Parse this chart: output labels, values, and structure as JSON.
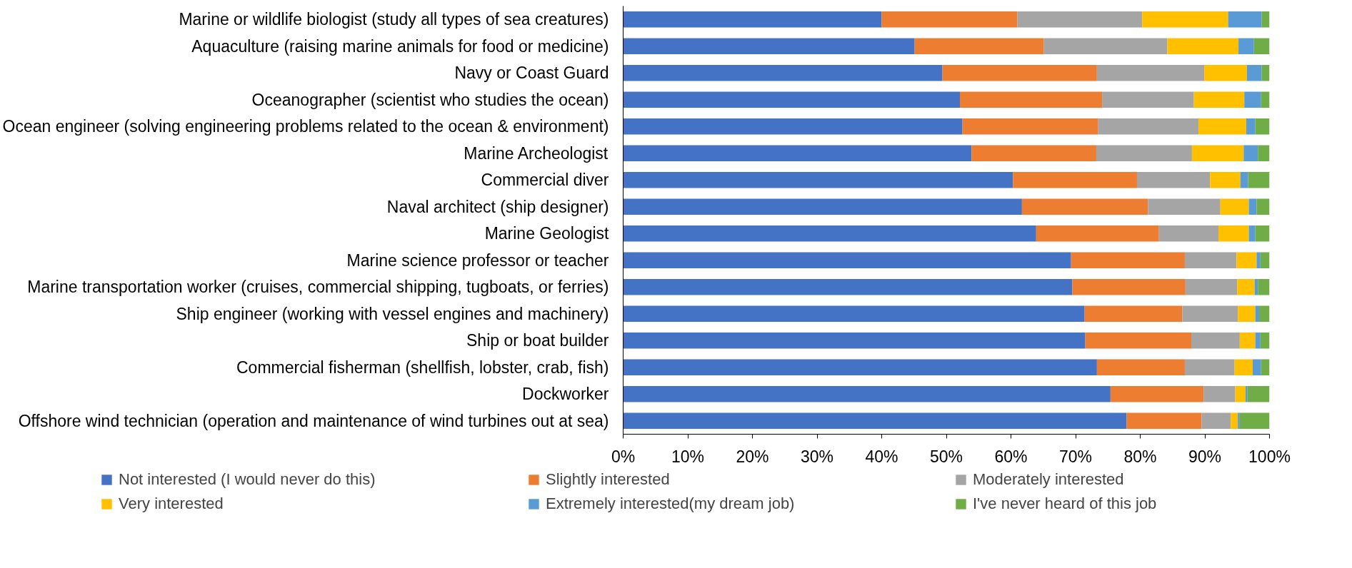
{
  "chart_data": {
    "type": "bar",
    "orientation": "horizontal",
    "stacked": true,
    "categories": [
      "Marine or wildlife biologist (study all types of sea creatures)",
      "Aquaculture (raising marine animals for food or medicine)",
      "Navy or Coast Guard",
      "Oceanographer (scientist who studies the ocean)",
      "Ocean engineer (solving engineering problems related to the ocean & environment)",
      "Marine Archeologist",
      "Commercial diver",
      "Naval architect (ship designer)",
      "Marine Geologist",
      "Marine science professor or teacher",
      "Marine transportation worker (cruises, commercial shipping, tugboats, or ferries)",
      "Ship engineer (working with vessel engines and machinery)",
      "Ship or boat builder",
      "Commercial fisherman (shellfish, lobster, crab, fish)",
      "Dockworker",
      "Offshore wind technician (operation and maintenance of wind turbines out at sea)"
    ],
    "series": [
      {
        "name": "Not interested (I would never do this)",
        "color": "#4472c4",
        "values": [
          40.0,
          45.1,
          49.4,
          52.1,
          52.5,
          53.9,
          60.3,
          61.7,
          63.9,
          69.3,
          69.5,
          71.4,
          71.5,
          73.3,
          75.4,
          77.9
        ]
      },
      {
        "name": "Slightly interested",
        "color": "#ed7d31",
        "values": [
          21.0,
          20.0,
          23.9,
          22.0,
          21.0,
          19.3,
          19.2,
          19.5,
          19.0,
          17.6,
          17.5,
          15.1,
          16.4,
          13.6,
          14.4,
          11.6
        ]
      },
      {
        "name": "Moderately interested",
        "color": "#a5a5a5",
        "values": [
          19.3,
          19.1,
          16.6,
          14.2,
          15.5,
          14.8,
          11.3,
          11.2,
          9.2,
          8.0,
          8.0,
          8.6,
          7.5,
          7.7,
          4.9,
          4.5
        ]
      },
      {
        "name": "Very interested",
        "color": "#ffc000",
        "values": [
          13.3,
          11.0,
          6.6,
          7.8,
          7.4,
          8.0,
          4.7,
          4.4,
          4.7,
          3.1,
          2.7,
          2.7,
          2.4,
          2.8,
          1.6,
          1.1
        ]
      },
      {
        "name": "Extremely interested(my dream job)",
        "color": "#5b9bd5",
        "values": [
          5.2,
          2.4,
          2.3,
          2.6,
          1.4,
          2.2,
          1.2,
          1.2,
          1.0,
          0.6,
          0.5,
          0.6,
          0.8,
          1.3,
          0.3,
          0.3
        ]
      },
      {
        "name": "I've never heard of this job",
        "color": "#70ad47",
        "values": [
          1.2,
          2.4,
          1.2,
          1.3,
          2.2,
          1.8,
          3.3,
          2.0,
          2.2,
          1.4,
          1.8,
          1.6,
          1.4,
          1.3,
          3.4,
          4.6
        ]
      }
    ],
    "xlim": [
      0,
      100
    ],
    "xticks": [
      {
        "value": 0,
        "label": "0%"
      },
      {
        "value": 10,
        "label": "10%"
      },
      {
        "value": 20,
        "label": "20%"
      },
      {
        "value": 30,
        "label": "30%"
      },
      {
        "value": 40,
        "label": "40%"
      },
      {
        "value": 50,
        "label": "50%"
      },
      {
        "value": 60,
        "label": "60%"
      },
      {
        "value": 70,
        "label": "70%"
      },
      {
        "value": 80,
        "label": "80%"
      },
      {
        "value": 90,
        "label": "90%"
      },
      {
        "value": 100,
        "label": "100%"
      }
    ],
    "grid": false,
    "legend": "bottom"
  }
}
